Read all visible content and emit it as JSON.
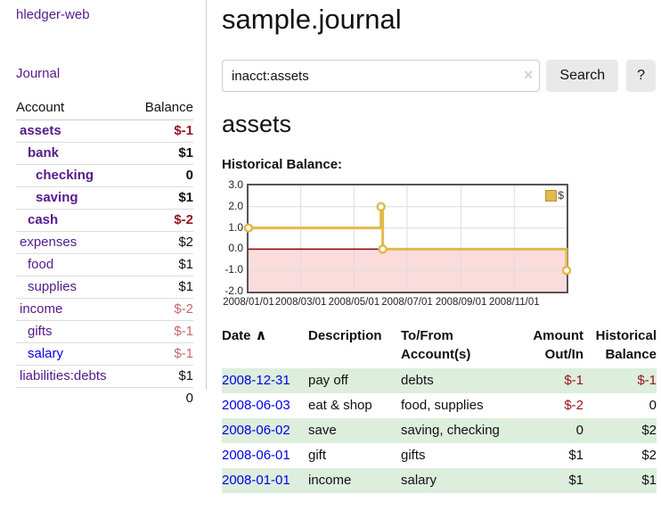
{
  "sidebar": {
    "app_title": "hledger-web",
    "nav": {
      "journal_label": "Journal"
    },
    "table": {
      "account_header": "Account",
      "balance_header": "Balance"
    },
    "accounts": [
      {
        "name": "assets",
        "balance": "$-1"
      },
      {
        "name": "bank",
        "balance": "$1"
      },
      {
        "name": "checking",
        "balance": "0"
      },
      {
        "name": "saving",
        "balance": "$1"
      },
      {
        "name": "cash",
        "balance": "$-2"
      },
      {
        "name": "expenses",
        "balance": "$2"
      },
      {
        "name": "food",
        "balance": "$1"
      },
      {
        "name": "supplies",
        "balance": "$1"
      },
      {
        "name": "income",
        "balance": "$-2"
      },
      {
        "name": "gifts",
        "balance": "$-1"
      },
      {
        "name": "salary",
        "balance": "$-1"
      },
      {
        "name": "liabilities:debts",
        "balance": "$1"
      }
    ],
    "total": "0"
  },
  "main": {
    "page_title": "sample.journal",
    "search": {
      "value": "inacct:assets",
      "clear_icon": "×",
      "button_label": "Search",
      "help_label": "?"
    },
    "account_heading": "assets",
    "chart_heading": "Historical Balance:"
  },
  "chart_data": {
    "type": "line",
    "step": true,
    "title": "Historical Balance:",
    "series": [
      {
        "name": "$",
        "color": "#e2b94b",
        "points": [
          [
            "2008-01-01",
            1
          ],
          [
            "2008-06-01",
            2
          ],
          [
            "2008-06-03",
            0
          ],
          [
            "2008-12-31",
            -1
          ]
        ]
      }
    ],
    "xlim": [
      "2008-01-01",
      "2008-12-31"
    ],
    "ylim": [
      -2,
      3
    ],
    "yticks": [
      "3.0",
      "2.0",
      "1.0",
      "0.0",
      "-1.0",
      "-2.0"
    ],
    "xticks": [
      "2008/01/01",
      "2008/03/01",
      "2008/05/01",
      "2008/07/01",
      "2008/09/01",
      "2008/11/01"
    ],
    "negative_fill": "#fbdcdc",
    "zero_line_color": "#8b0000",
    "grid_color": "#ddd",
    "legend_position": "top-right"
  },
  "register": {
    "headers": {
      "date": "Date",
      "sort_icon": "∧",
      "description": "Description",
      "tofrom": "To/From Account(s)",
      "amount": "Amount Out/In",
      "balance": "Historical Balance"
    },
    "rows": [
      {
        "date": "2008-12-31",
        "description": "pay off",
        "accounts": "debts",
        "amount": "$-1",
        "balance": "$-1"
      },
      {
        "date": "2008-06-03",
        "description": "eat & shop",
        "accounts": "food, supplies",
        "amount": "$-2",
        "balance": "0"
      },
      {
        "date": "2008-06-02",
        "description": "save",
        "accounts": "saving, checking",
        "amount": "0",
        "balance": "$2"
      },
      {
        "date": "2008-06-01",
        "description": "gift",
        "accounts": "gifts",
        "amount": "$1",
        "balance": "$2"
      },
      {
        "date": "2008-01-01",
        "description": "income",
        "accounts": "salary",
        "amount": "$1",
        "balance": "$1"
      }
    ]
  }
}
